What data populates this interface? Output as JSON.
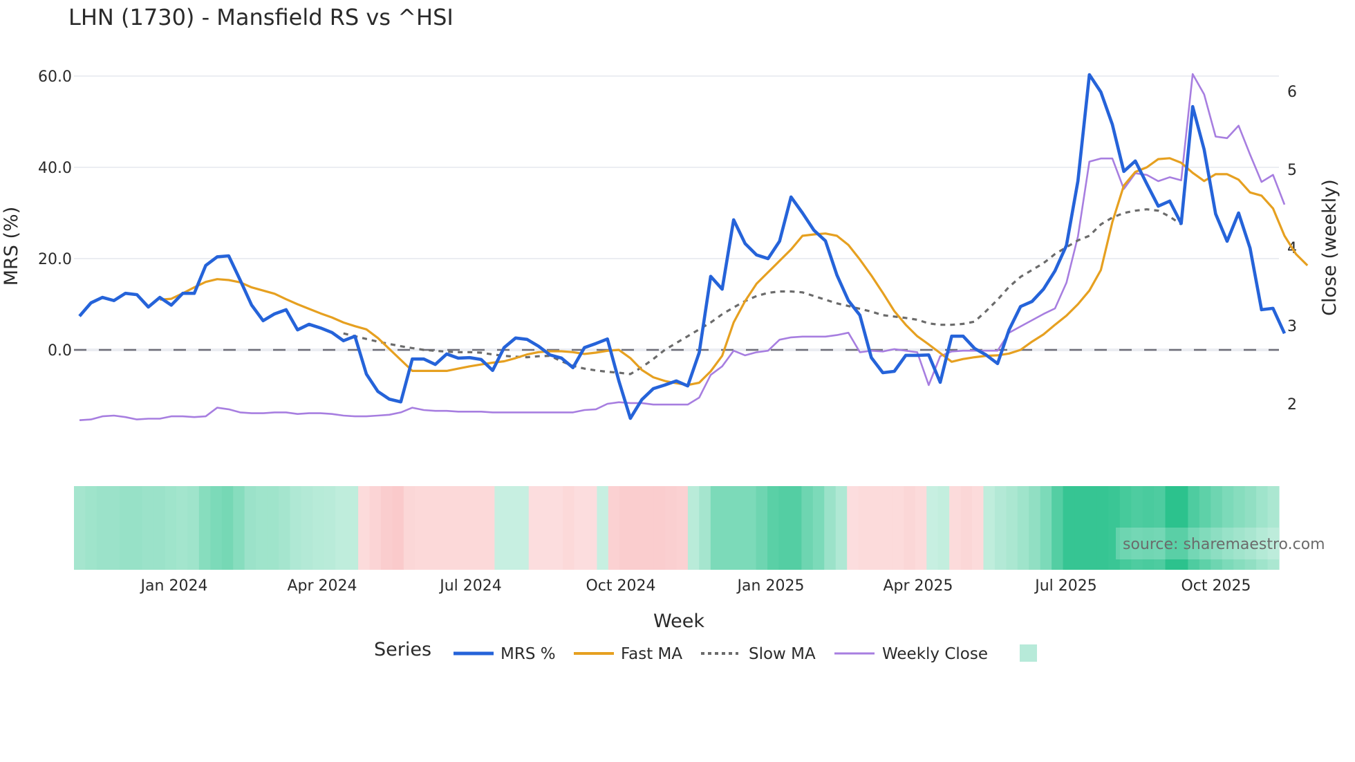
{
  "title": "LHN (1730) - Mansfield RS vs ^HSI",
  "axes": {
    "y_left_title": "MRS (%)",
    "y_right_title": "Close (weekly)",
    "x_title": "Week",
    "y_left_ticks": [
      "60.0",
      "40.0",
      "20.0",
      "0.0"
    ],
    "y_right_ticks": [
      "6",
      "5",
      "4",
      "3",
      "2"
    ],
    "x_ticks": [
      "Jan 2024",
      "Apr 2024",
      "Jul 2024",
      "Oct 2024",
      "Jan 2025",
      "Apr 2025",
      "Jul 2025",
      "Oct 2025"
    ]
  },
  "legend": {
    "title": "Series",
    "items": [
      {
        "label": "MRS %",
        "color": "#2563d9",
        "style": "solid"
      },
      {
        "label": "Fast MA",
        "color": "#e6a020",
        "style": "solid"
      },
      {
        "label": "Slow MA",
        "color": "#6b6b6b",
        "style": "dotted"
      },
      {
        "label": "Weekly Close",
        "color": "#a77ee0",
        "style": "solid"
      },
      {
        "label": "",
        "color": "#b7ead9",
        "style": "box"
      }
    ]
  },
  "source_note": "source: sharemaestro.com",
  "chart_data": {
    "type": "line",
    "title": "LHN (1730) - Mansfield RS vs ^HSI",
    "xlabel": "Week",
    "ylabel": "MRS (%)",
    "y2label": "Close (weekly)",
    "ylim": [
      -20,
      62
    ],
    "y2lim": [
      1.5,
      6.3
    ],
    "x_start": "2023-11-03",
    "x_step": "1 week",
    "x_tick_labels": [
      "Jan 2024",
      "Apr 2024",
      "Jul 2024",
      "Oct 2024",
      "Jan 2025",
      "Apr 2025",
      "Jul 2025",
      "Oct 2025"
    ],
    "zero_line": true,
    "series": [
      {
        "name": "MRS %",
        "axis": "left",
        "values": [
          7.4,
          10.3,
          11.5,
          10.8,
          12.4,
          12.1,
          9.4,
          11.5,
          9.8,
          12.4,
          12.4,
          18.5,
          20.4,
          20.6,
          15.3,
          9.8,
          6.4,
          7.9,
          8.8,
          4.4,
          5.6,
          4.8,
          3.8,
          2.0,
          3.0,
          -5.3,
          -9.1,
          -10.8,
          -11.4,
          -2.0,
          -2.0,
          -3.2,
          -0.9,
          -1.8,
          -1.7,
          -2.1,
          -4.5,
          0.5,
          2.6,
          2.3,
          0.8,
          -1.1,
          -1.8,
          -3.9,
          0.5,
          1.4,
          2.4,
          -6.8,
          -15.0,
          -10.9,
          -8.5,
          -7.7,
          -6.8,
          -7.9,
          -0.6,
          16.1,
          13.3,
          28.5,
          23.3,
          20.8,
          20.0,
          23.8,
          33.5,
          30.0,
          26.2,
          23.9,
          16.4,
          10.8,
          7.6,
          -1.7,
          -5.0,
          -4.7,
          -1.2,
          -1.2,
          -1.1,
          -7.1,
          3.0,
          3.0,
          0.3,
          -1.1,
          -3.0,
          4.4,
          9.5,
          10.6,
          13.3,
          17.3,
          22.9,
          37.0,
          60.3,
          56.5,
          49.4,
          39.1,
          41.4,
          36.4,
          31.5,
          32.6,
          27.7,
          53.3,
          43.9,
          29.8,
          23.8,
          30.0,
          22.3,
          8.8,
          9.1,
          3.6
        ]
      },
      {
        "name": "Fast MA",
        "axis": "left",
        "start_index": 7,
        "values": [
          11.0,
          11.2,
          12.4,
          13.7,
          14.9,
          15.5,
          15.3,
          14.8,
          13.7,
          13.0,
          12.3,
          11.1,
          10.0,
          9.0,
          8.0,
          7.1,
          6.0,
          5.2,
          4.5,
          2.6,
          0.2,
          -2.2,
          -4.6,
          -4.6,
          -4.6,
          -4.6,
          -4.1,
          -3.6,
          -3.2,
          -2.8,
          -2.5,
          -1.8,
          -1.0,
          -0.5,
          -0.3,
          -0.3,
          -0.5,
          -0.9,
          -0.6,
          -0.2,
          0.0,
          -1.8,
          -4.4,
          -6.0,
          -6.8,
          -7.3,
          -7.7,
          -7.2,
          -4.7,
          -1.3,
          6.0,
          10.7,
          14.5,
          17.0,
          19.5,
          22.0,
          25.0,
          25.3,
          25.5,
          25.0,
          23.0,
          19.8,
          16.3,
          12.5,
          8.5,
          5.5,
          3.0,
          1.2,
          -0.7,
          -2.6,
          -2.0,
          -1.6,
          -1.3,
          -1.2,
          -0.8,
          0.0,
          1.8,
          3.4,
          5.5,
          7.5,
          10.0,
          13.0,
          17.5,
          28.0,
          36.0,
          39.0,
          40.0,
          41.8,
          42.0,
          41.0,
          38.8,
          37.0,
          38.5,
          38.5,
          37.3,
          34.5,
          33.8,
          31.0,
          25.0,
          21.0,
          18.5
        ]
      },
      {
        "name": "Slow MA",
        "axis": "left",
        "start_index": 23,
        "values": [
          3.6,
          3.0,
          2.4,
          1.8,
          1.3,
          0.8,
          0.4,
          0.0,
          -0.2,
          -0.4,
          -0.5,
          -0.5,
          -0.6,
          -1.0,
          -1.3,
          -1.5,
          -1.6,
          -1.4,
          -1.3,
          -2.5,
          -3.5,
          -4.1,
          -4.5,
          -4.8,
          -5.0,
          -5.3,
          -3.8,
          -2.0,
          0.0,
          1.5,
          3.0,
          4.5,
          6.0,
          7.8,
          9.3,
          10.7,
          11.8,
          12.5,
          12.8,
          12.8,
          12.6,
          11.8,
          11.0,
          10.2,
          9.6,
          9.0,
          8.4,
          7.6,
          7.3,
          7.0,
          6.6,
          5.8,
          5.5,
          5.5,
          5.7,
          6.2,
          8.5,
          11.0,
          13.8,
          16.0,
          17.5,
          19.0,
          21.0,
          22.5,
          24.0,
          25.0,
          27.5,
          29.0,
          30.0,
          30.5,
          30.8,
          30.5,
          29.2,
          27.5
        ]
      },
      {
        "name": "Weekly Close",
        "axis": "right",
        "values": [
          1.79,
          1.8,
          1.84,
          1.85,
          1.83,
          1.8,
          1.81,
          1.81,
          1.84,
          1.84,
          1.83,
          1.84,
          1.95,
          1.93,
          1.89,
          1.88,
          1.88,
          1.89,
          1.89,
          1.87,
          1.88,
          1.88,
          1.87,
          1.85,
          1.84,
          1.84,
          1.85,
          1.86,
          1.89,
          1.95,
          1.92,
          1.91,
          1.91,
          1.9,
          1.9,
          1.9,
          1.89,
          1.89,
          1.89,
          1.89,
          1.89,
          1.89,
          1.89,
          1.89,
          1.92,
          1.93,
          2.0,
          2.02,
          2.01,
          2.01,
          1.99,
          1.99,
          1.99,
          1.99,
          2.08,
          2.37,
          2.48,
          2.68,
          2.62,
          2.66,
          2.68,
          2.82,
          2.85,
          2.86,
          2.86,
          2.86,
          2.88,
          2.91,
          2.66,
          2.68,
          2.67,
          2.7,
          2.68,
          2.66,
          2.24,
          2.61,
          2.67,
          2.68,
          2.68,
          2.68,
          2.68,
          2.91,
          2.99,
          3.07,
          3.15,
          3.22,
          3.55,
          4.14,
          5.1,
          5.14,
          5.14,
          4.75,
          4.95,
          4.93,
          4.85,
          4.9,
          4.86,
          6.22,
          5.96,
          5.42,
          5.4,
          5.56,
          5.19,
          4.84,
          4.93,
          4.55
        ]
      }
    ],
    "heatmap": {
      "name": "regime strip",
      "note": "green = positive RS regime, red = negative; intensity 0..1",
      "values": [
        0.35,
        0.38,
        0.4,
        0.4,
        0.42,
        0.42,
        0.4,
        0.4,
        0.38,
        0.36,
        0.38,
        0.5,
        0.55,
        0.58,
        0.5,
        0.4,
        0.38,
        0.38,
        0.35,
        0.3,
        0.28,
        0.26,
        0.25,
        0.22,
        0.22,
        -0.18,
        -0.25,
        -0.32,
        -0.35,
        -0.22,
        -0.2,
        -0.2,
        -0.2,
        -0.2,
        -0.2,
        -0.2,
        -0.2,
        0.18,
        0.18,
        0.18,
        -0.15,
        -0.15,
        -0.15,
        -0.2,
        -0.15,
        -0.15,
        0.18,
        -0.28,
        -0.32,
        -0.32,
        -0.32,
        -0.32,
        -0.3,
        -0.28,
        0.25,
        0.35,
        0.55,
        0.55,
        0.55,
        0.55,
        0.62,
        0.72,
        0.75,
        0.75,
        0.62,
        0.55,
        0.4,
        0.3,
        -0.15,
        -0.18,
        -0.18,
        -0.18,
        -0.18,
        -0.22,
        -0.18,
        0.18,
        0.2,
        -0.18,
        -0.22,
        -0.18,
        0.22,
        0.28,
        0.32,
        0.38,
        0.45,
        0.55,
        0.75,
        0.9,
        0.9,
        0.9,
        0.9,
        0.88,
        0.82,
        0.78,
        0.8,
        0.78,
        0.95,
        0.95,
        0.78,
        0.7,
        0.62,
        0.55,
        0.5,
        0.45,
        0.38,
        0.32
      ]
    }
  }
}
